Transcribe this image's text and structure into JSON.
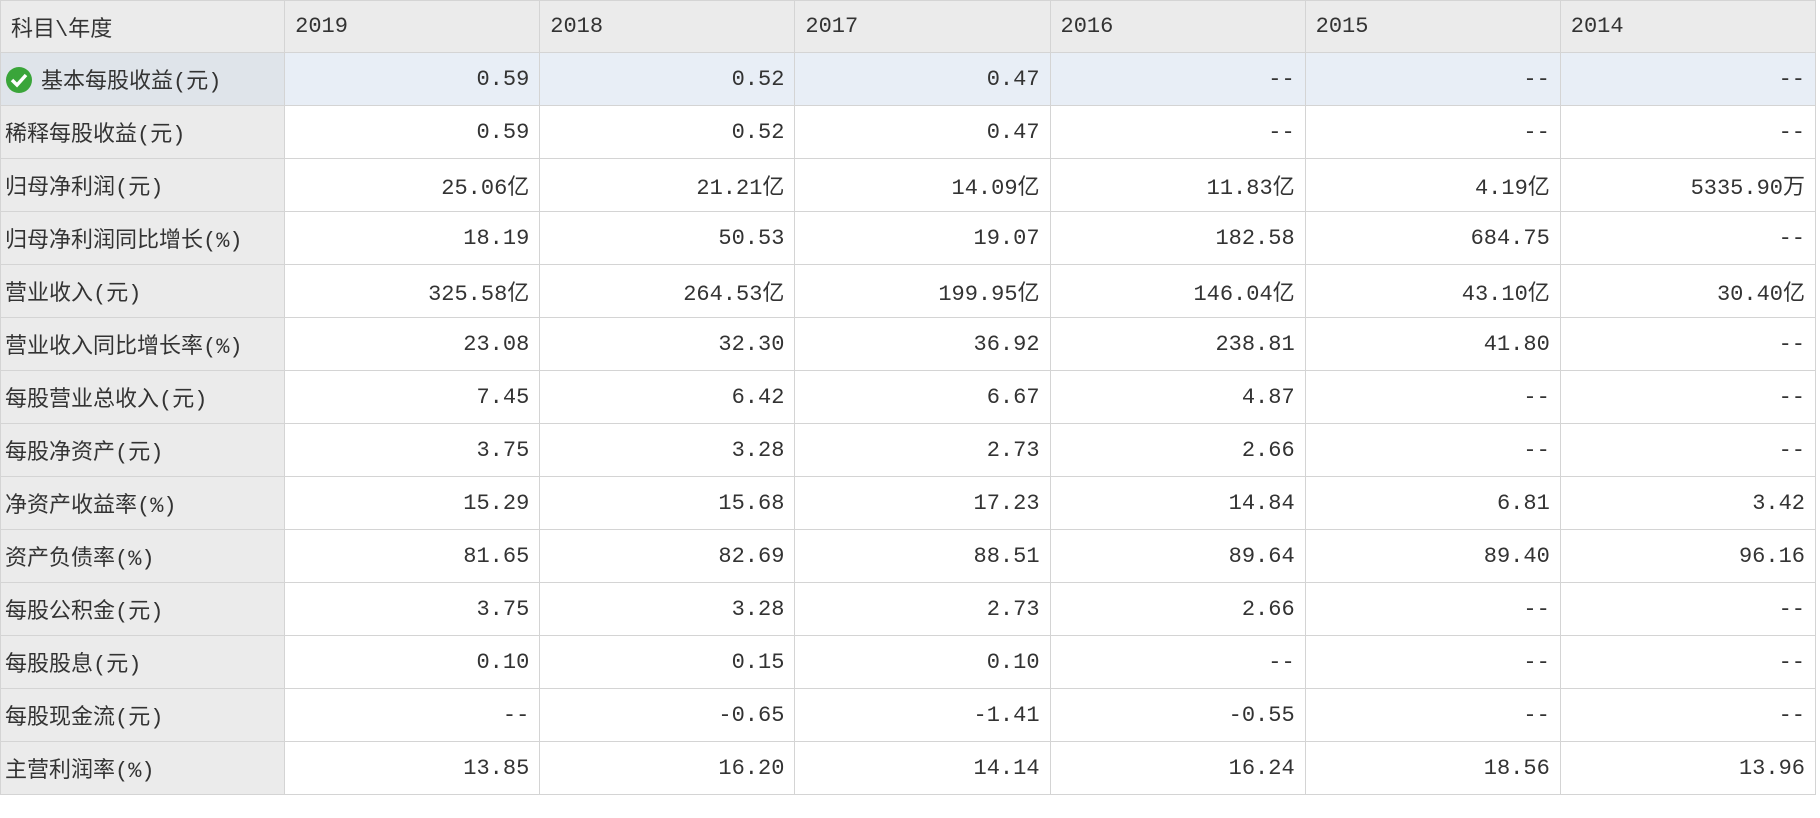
{
  "table": {
    "header": [
      "科目\\年度",
      "2019",
      "2018",
      "2017",
      "2016",
      "2015",
      "2014"
    ],
    "rows": [
      [
        "基本每股收益(元)",
        "0.59",
        "0.52",
        "0.47",
        "--",
        "--",
        "--"
      ],
      [
        "稀释每股收益(元)",
        "0.59",
        "0.52",
        "0.47",
        "--",
        "--",
        "--"
      ],
      [
        "归母净利润(元)",
        "25.06亿",
        "21.21亿",
        "14.09亿",
        "11.83亿",
        "4.19亿",
        "5335.90万"
      ],
      [
        "归母净利润同比增长(%)",
        "18.19",
        "50.53",
        "19.07",
        "182.58",
        "684.75",
        "--"
      ],
      [
        "营业收入(元)",
        "325.58亿",
        "264.53亿",
        "199.95亿",
        "146.04亿",
        "43.10亿",
        "30.40亿"
      ],
      [
        "营业收入同比增长率(%)",
        "23.08",
        "32.30",
        "36.92",
        "238.81",
        "41.80",
        "--"
      ],
      [
        "每股营业总收入(元)",
        "7.45",
        "6.42",
        "6.67",
        "4.87",
        "--",
        "--"
      ],
      [
        "每股净资产(元)",
        "3.75",
        "3.28",
        "2.73",
        "2.66",
        "--",
        "--"
      ],
      [
        "净资产收益率(%)",
        "15.29",
        "15.68",
        "17.23",
        "14.84",
        "6.81",
        "3.42"
      ],
      [
        "资产负债率(%)",
        "81.65",
        "82.69",
        "88.51",
        "89.64",
        "89.40",
        "96.16"
      ],
      [
        "每股公积金(元)",
        "3.75",
        "3.28",
        "2.73",
        "2.66",
        "--",
        "--"
      ],
      [
        "每股股息(元)",
        "0.10",
        "0.15",
        "0.10",
        "--",
        "--",
        "--"
      ],
      [
        "每股现金流(元)",
        "--",
        "-0.65",
        "-1.41",
        "-0.55",
        "--",
        "--"
      ],
      [
        "主营利润率(%)",
        "13.85",
        "16.20",
        "14.14",
        "16.24",
        "18.56",
        "13.96"
      ]
    ]
  }
}
